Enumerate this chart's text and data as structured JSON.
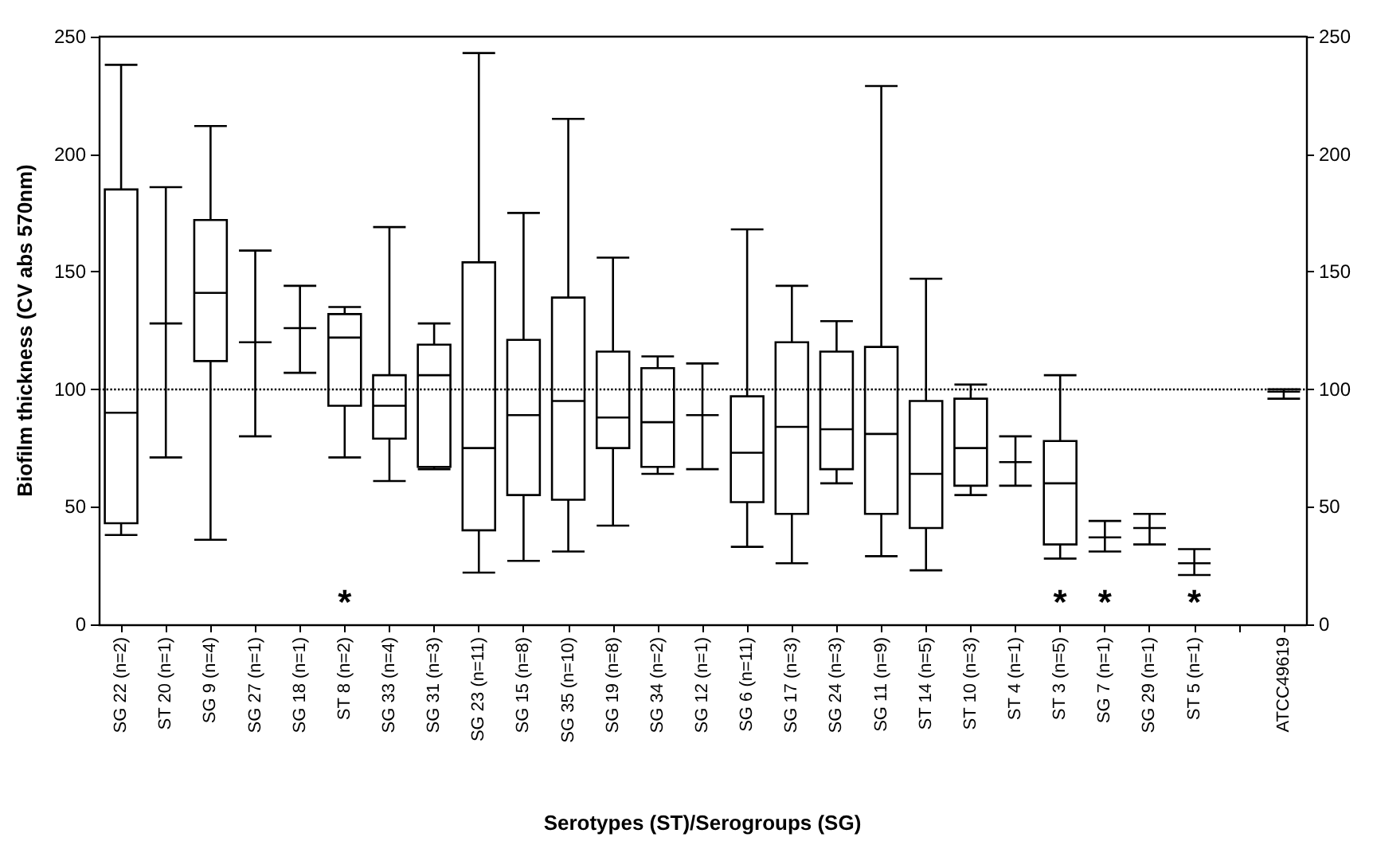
{
  "chart_data": {
    "type": "box",
    "xlabel": "Serotypes (ST)/Serogroups (SG)",
    "ylabel": "Biofilm thickness (CV abs 570nm)",
    "categories": [
      "SG 22 (n=2)",
      "ST 20 (n=1)",
      "SG 9 (n=4)",
      "SG 27 (n=1)",
      "SG 18 (n=1)",
      "ST 8 (n=2)",
      "SG 33 (n=4)",
      "SG 31 (n=3)",
      "SG 23 (n=11)",
      "SG 15 (n=8)",
      "SG 35 (n=10)",
      "SG 19 (n=8)",
      "SG 34 (n=2)",
      "SG 12 (n=1)",
      "SG 6 (n=11)",
      "SG 17 (n=3)",
      "SG 24 (n=3)",
      "SG 11 (n=9)",
      "ST 14 (n=5)",
      "ST 10 (n=3)",
      "ST 4 (n=1)",
      "ST 3 (n=5)",
      "SG 7 (n=1)",
      "SG 29 (n=1)",
      "ST 5 (n=1)",
      null,
      "ATCC49619"
    ],
    "color": "#000000",
    "boxes": [
      {
        "low": 38,
        "q1": 43,
        "median": 90,
        "q3": 185,
        "high": 238
      },
      {
        "low": 71,
        "q1": 128,
        "median": 128,
        "q3": 128,
        "high": 186
      },
      {
        "low": 36,
        "q1": 112,
        "median": 141,
        "q3": 172,
        "high": 212
      },
      {
        "low": 80,
        "q1": 120,
        "median": 120,
        "q3": 120,
        "high": 159
      },
      {
        "low": 107,
        "q1": 126,
        "median": 126,
        "q3": 126,
        "high": 144
      },
      {
        "low": 71,
        "q1": 93,
        "median": 122,
        "q3": 132,
        "high": 135
      },
      {
        "low": 61,
        "q1": 79,
        "median": 93,
        "q3": 106,
        "high": 169
      },
      {
        "low": 66,
        "q1": 67,
        "median": 106,
        "q3": 119,
        "high": 128
      },
      {
        "low": 22,
        "q1": 40,
        "median": 75,
        "q3": 154,
        "high": 243
      },
      {
        "low": 27,
        "q1": 55,
        "median": 89,
        "q3": 121,
        "high": 175
      },
      {
        "low": 31,
        "q1": 53,
        "median": 95,
        "q3": 139,
        "high": 215
      },
      {
        "low": 42,
        "q1": 75,
        "median": 88,
        "q3": 116,
        "high": 156
      },
      {
        "low": 64,
        "q1": 67,
        "median": 86,
        "q3": 109,
        "high": 114
      },
      {
        "low": 66,
        "q1": 89,
        "median": 89,
        "q3": 89,
        "high": 111
      },
      {
        "low": 33,
        "q1": 52,
        "median": 73,
        "q3": 97,
        "high": 168
      },
      {
        "low": 26,
        "q1": 47,
        "median": 84,
        "q3": 120,
        "high": 144
      },
      {
        "low": 60,
        "q1": 66,
        "median": 83,
        "q3": 116,
        "high": 129
      },
      {
        "low": 29,
        "q1": 47,
        "median": 81,
        "q3": 118,
        "high": 229
      },
      {
        "low": 23,
        "q1": 41,
        "median": 64,
        "q3": 95,
        "high": 147
      },
      {
        "low": 55,
        "q1": 59,
        "median": 75,
        "q3": 96,
        "high": 102
      },
      {
        "low": 59,
        "q1": 69,
        "median": 69,
        "q3": 69,
        "high": 80
      },
      {
        "low": 28,
        "q1": 34,
        "median": 60,
        "q3": 78,
        "high": 106
      },
      {
        "low": 31,
        "q1": 37,
        "median": 37,
        "q3": 37,
        "high": 44
      },
      {
        "low": 34,
        "q1": 41,
        "median": 41,
        "q3": 41,
        "high": 47
      },
      {
        "low": 21,
        "q1": 26,
        "median": 26,
        "q3": 26,
        "high": 32
      },
      null,
      {
        "low": 96,
        "q1": 99,
        "median": 99,
        "q3": 99,
        "high": 100
      }
    ],
    "ylim": [
      0,
      250
    ],
    "yticks": [
      0,
      50,
      100,
      150,
      200,
      250
    ],
    "y2lim": [
      0,
      250
    ],
    "y2ticks": [
      0,
      50,
      100,
      150,
      200,
      250
    ],
    "ref_lines": [
      {
        "axis": "y",
        "value": 100,
        "line_style": "dotted",
        "color": "#000000"
      }
    ],
    "annotations": [
      "*",
      "*",
      "*",
      "*"
    ],
    "grid": false
  }
}
